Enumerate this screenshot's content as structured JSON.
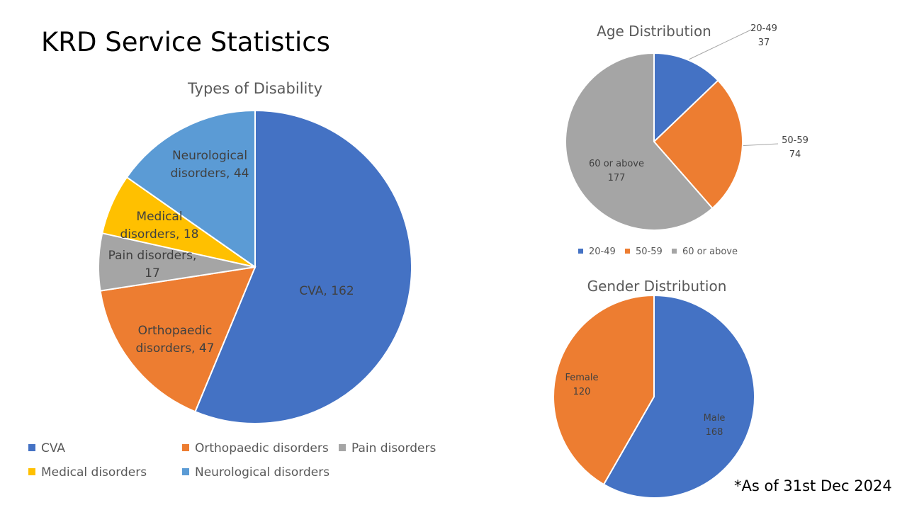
{
  "slide": {
    "title": "KRD Service Statistics",
    "footnote": "*As of 31st Dec 2024"
  },
  "colors": {
    "blue": "#4472C4",
    "orange": "#ED7D31",
    "gray": "#A5A5A5",
    "gold": "#FFC000",
    "lightblue": "#5B9BD5"
  },
  "chart_data": [
    {
      "type": "pie",
      "title": "Types of Disability",
      "categories": [
        "CVA",
        "Orthopaedic disorders",
        "Pain disorders",
        "Medical disorders",
        "Neurological disorders"
      ],
      "values": [
        162,
        47,
        17,
        18,
        44
      ],
      "colors": [
        "#4472C4",
        "#ED7D31",
        "#A5A5A5",
        "#FFC000",
        "#5B9BD5"
      ],
      "data_labels": [
        [
          "CVA, 162"
        ],
        [
          "Orthopaedic",
          "disorders, 47"
        ],
        [
          "Pain disorders,",
          "17"
        ],
        [
          "Medical",
          "disorders, 18"
        ],
        [
          "Neurological",
          "disorders, 44"
        ]
      ],
      "legend_position": "bottom"
    },
    {
      "type": "pie",
      "title": "Age Distribution",
      "categories": [
        "20-49",
        "50-59",
        "60 or above"
      ],
      "values": [
        37,
        74,
        177
      ],
      "colors": [
        "#4472C4",
        "#ED7D31",
        "#A5A5A5"
      ],
      "data_labels": [
        [
          "20-49",
          "37"
        ],
        [
          "50-59",
          "74"
        ],
        [
          "60 or above",
          "177"
        ]
      ],
      "legend_position": "bottom"
    },
    {
      "type": "pie",
      "title": "Gender Distribution",
      "categories": [
        "Male",
        "Female"
      ],
      "values": [
        168,
        120
      ],
      "colors": [
        "#4472C4",
        "#ED7D31"
      ],
      "data_labels": [
        [
          "Male",
          "168"
        ],
        [
          "Female",
          "120"
        ]
      ],
      "legend_position": "none"
    }
  ]
}
